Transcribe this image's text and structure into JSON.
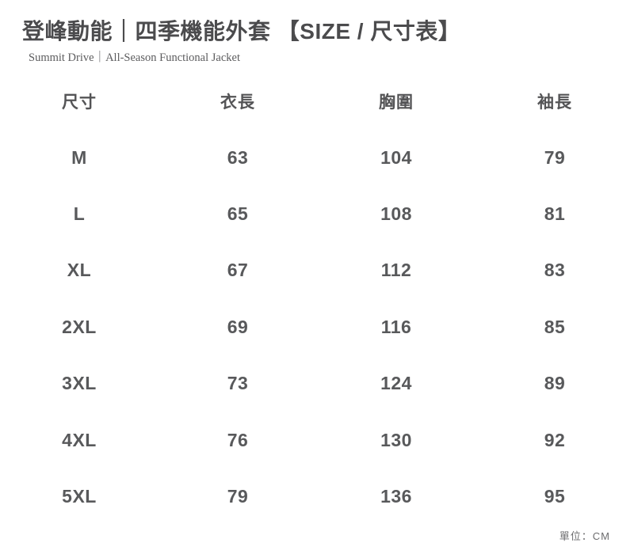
{
  "header": {
    "title": "登峰動能｜四季機能外套 【SIZE / 尺寸表】",
    "subtitle": "Summit Drive｜All-Season Functional Jacket"
  },
  "table": {
    "columns": [
      "尺寸",
      "衣長",
      "胸圍",
      "袖長"
    ],
    "rows": [
      {
        "size": "M",
        "length": "63",
        "chest": "104",
        "sleeve": "79"
      },
      {
        "size": "L",
        "length": "65",
        "chest": "108",
        "sleeve": "81"
      },
      {
        "size": "XL",
        "length": "67",
        "chest": "112",
        "sleeve": "83"
      },
      {
        "size": "2XL",
        "length": "69",
        "chest": "116",
        "sleeve": "85"
      },
      {
        "size": "3XL",
        "length": "73",
        "chest": "124",
        "sleeve": "89"
      },
      {
        "size": "4XL",
        "length": "76",
        "chest": "130",
        "sleeve": "92"
      },
      {
        "size": "5XL",
        "length": "79",
        "chest": "136",
        "sleeve": "95"
      }
    ]
  },
  "footer": {
    "unit_note": "單位：CM"
  },
  "colors": {
    "background": "#ffffff",
    "title_text": "#4b4b4d",
    "table_text": "#58595b",
    "note_text": "#6d6d6f"
  }
}
